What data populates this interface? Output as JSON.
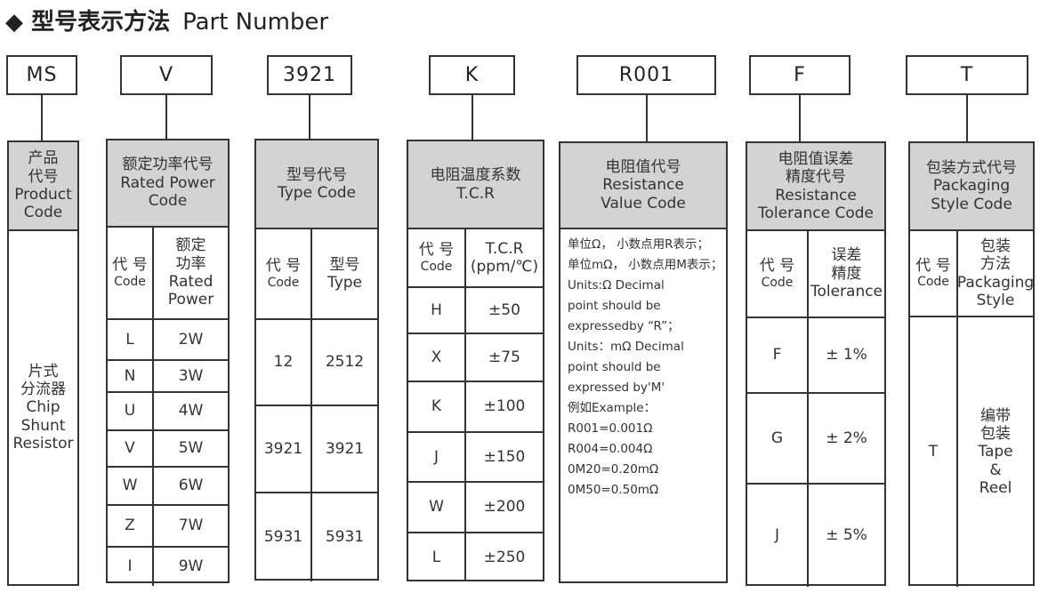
{
  "title": {
    "icon": "diamond-icon",
    "zh": "型号表示方法",
    "en": "Part Number"
  },
  "columns": [
    {
      "code": "MS",
      "header": [
        "产品",
        "代号",
        "Product",
        "Code"
      ],
      "body": [
        "片式",
        "分流器",
        "Chip",
        "Shunt",
        "Resistor"
      ]
    },
    {
      "code": "V",
      "header": [
        "额定功率代号",
        "Rated Power",
        "Code"
      ],
      "sub": [
        [
          "代 号",
          "Code"
        ],
        [
          "额定",
          "功率",
          "Rated",
          "Power"
        ]
      ],
      "rows": [
        [
          "L",
          "2W"
        ],
        [
          "N",
          "3W"
        ],
        [
          "U",
          "4W"
        ],
        [
          "V",
          "5W"
        ],
        [
          "W",
          "6W"
        ],
        [
          "Z",
          "7W"
        ],
        [
          "I",
          "9W"
        ]
      ]
    },
    {
      "code": "3921",
      "header": [
        "型号代号",
        "Type Code"
      ],
      "sub": [
        [
          "代 号",
          "Code"
        ],
        [
          "型号",
          "Type"
        ]
      ],
      "rows": [
        [
          "12",
          "2512"
        ],
        [
          "3921",
          "3921"
        ],
        [
          "5931",
          "5931"
        ]
      ]
    },
    {
      "code": "K",
      "header": [
        "电阻温度系数",
        "T.C.R"
      ],
      "sub": [
        [
          "代 号",
          "Code"
        ],
        [
          "T.C.R",
          "(ppm/℃)"
        ]
      ],
      "rows": [
        [
          "H",
          "±50"
        ],
        [
          "X",
          "±75"
        ],
        [
          "K",
          "±100"
        ],
        [
          "J",
          "±150"
        ],
        [
          "W",
          "±200"
        ],
        [
          "L",
          "±250"
        ]
      ]
    },
    {
      "code": "R001",
      "header": [
        "电阻值代号",
        "Resistance",
        "Value Code"
      ],
      "note": [
        "单位Ω， 小数点用R表示；",
        "单位mΩ， 小数点用M表示；",
        "Units:Ω Decimal",
        "point should be",
        "expressedby “R”；",
        "Units：mΩ Decimal",
        "point should be",
        "expressed by'M'",
        "例如Example：",
        "R001=0.001Ω",
        "R004=0.004Ω",
        "0M20=0.20mΩ",
        "0M50=0.50mΩ"
      ]
    },
    {
      "code": "F",
      "header": [
        "电阻值误差",
        "精度代号",
        "Resistance",
        "Tolerance Code"
      ],
      "sub": [
        [
          "代 号",
          "Code"
        ],
        [
          "误差",
          "精度",
          "Tolerance"
        ]
      ],
      "rows": [
        [
          "F",
          "± 1%"
        ],
        [
          "G",
          "± 2%"
        ],
        [
          "J",
          "± 5%"
        ]
      ]
    },
    {
      "code": "T",
      "header": [
        "包装方式代号",
        "Packaging",
        "Style Code"
      ],
      "sub": [
        [
          "代 号",
          "Code"
        ],
        [
          "包装",
          "方法",
          "Packaging",
          "Style"
        ]
      ],
      "rows": [
        [
          "T",
          [
            "编带",
            "包装",
            "Tape",
            "&",
            "Reel"
          ]
        ]
      ]
    }
  ]
}
